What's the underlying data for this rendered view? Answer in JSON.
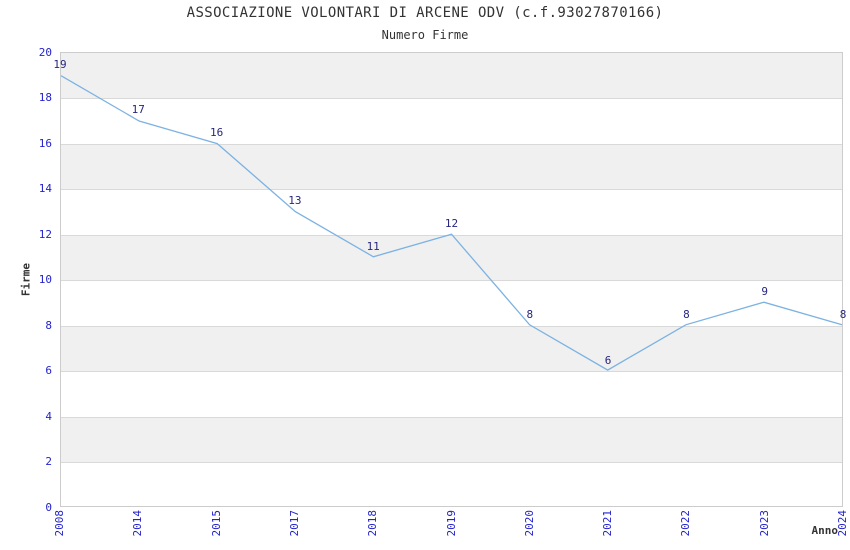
{
  "chart_data": {
    "type": "line",
    "title": "ASSOCIAZIONE VOLONTARI DI ARCENE ODV (c.f.93027870166)",
    "subtitle": "Numero Firme",
    "xlabel": "Anno",
    "ylabel": "Firme",
    "categories": [
      "2008",
      "2014",
      "2015",
      "2017",
      "2018",
      "2019",
      "2020",
      "2021",
      "2022",
      "2023",
      "2024"
    ],
    "values": [
      19,
      17,
      16,
      13,
      11,
      12,
      8,
      6,
      8,
      9,
      8
    ],
    "ylim": [
      0,
      20
    ],
    "ytick_step": 2,
    "grid": true,
    "legend": "none",
    "plot_bands": "alternating horizontal gray/white bands, 2 units each",
    "markers": "none",
    "colors": {
      "line": "#7cb2e2",
      "band": "#f0f0f0",
      "grid": "#d9d9d9",
      "border": "#cccccc",
      "tick_label": "#2323cc",
      "data_label": "#26267f",
      "title": "#333333",
      "axis_title": "#333333"
    }
  }
}
